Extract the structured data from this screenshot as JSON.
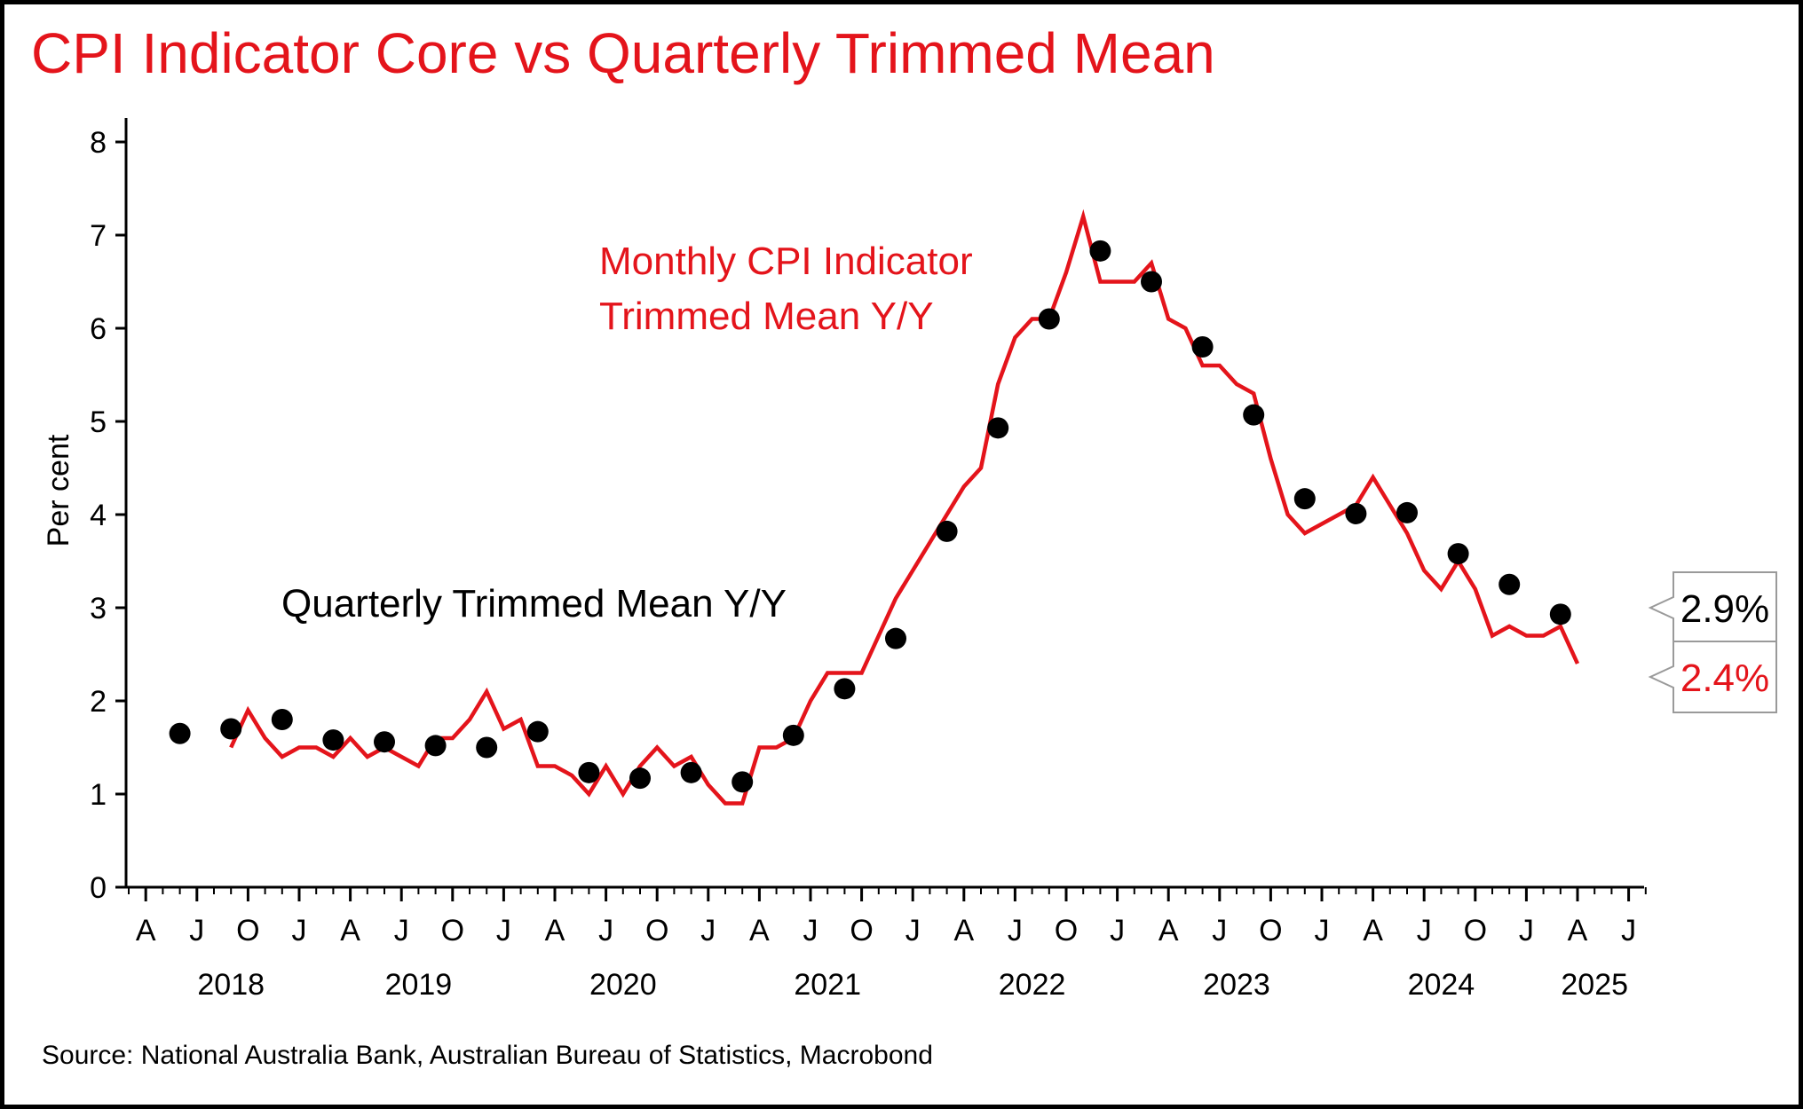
{
  "title": "CPI Indicator Core vs Quarterly Trimmed Mean",
  "source": "Source: National Australia Bank, Australian Bureau of Statistics, Macrobond",
  "colors": {
    "accent": "#e4141b",
    "dots": "#000000",
    "axis": "#000000"
  },
  "chart_data": {
    "type": "line",
    "title": "CPI Indicator Core vs Quarterly Trimmed Mean",
    "xlabel": "",
    "ylabel": "Per cent",
    "ylim": [
      0,
      8
    ],
    "yticks": [
      0,
      1,
      2,
      3,
      4,
      5,
      6,
      7,
      8
    ],
    "xlim": [
      "2018-03",
      "2025-08"
    ],
    "x_month_ticks": [
      "A",
      "J",
      "O",
      "J",
      "A",
      "J",
      "O",
      "J",
      "A",
      "J",
      "O",
      "J",
      "A",
      "J",
      "O",
      "J",
      "A",
      "J",
      "O",
      "J",
      "A",
      "J",
      "O",
      "J",
      "A",
      "J",
      "O",
      "J",
      "A",
      "J"
    ],
    "x_year_labels": [
      {
        "label": "2018",
        "at": "2018-09"
      },
      {
        "label": "2019",
        "at": "2019-08"
      },
      {
        "label": "2020",
        "at": "2020-08"
      },
      {
        "label": "2021",
        "at": "2021-08"
      },
      {
        "label": "2022",
        "at": "2022-08"
      },
      {
        "label": "2023",
        "at": "2023-08"
      },
      {
        "label": "2024",
        "at": "2024-08"
      },
      {
        "label": "2025",
        "at": "2025-05"
      }
    ],
    "grid": false,
    "legend": "none",
    "series": [
      {
        "name": "Monthly CPI Indicator Trimmed Mean Y/Y",
        "kind": "line",
        "color": "#e4141b",
        "points": [
          [
            "2018-09",
            1.5
          ],
          [
            "2018-10",
            1.9
          ],
          [
            "2018-11",
            1.6
          ],
          [
            "2018-12",
            1.4
          ],
          [
            "2019-01",
            1.5
          ],
          [
            "2019-02",
            1.5
          ],
          [
            "2019-03",
            1.4
          ],
          [
            "2019-04",
            1.6
          ],
          [
            "2019-05",
            1.4
          ],
          [
            "2019-06",
            1.5
          ],
          [
            "2019-07",
            1.4
          ],
          [
            "2019-08",
            1.3
          ],
          [
            "2019-09",
            1.6
          ],
          [
            "2019-10",
            1.6
          ],
          [
            "2019-11",
            1.8
          ],
          [
            "2019-12",
            2.1
          ],
          [
            "2020-01",
            1.7
          ],
          [
            "2020-02",
            1.8
          ],
          [
            "2020-03",
            1.3
          ],
          [
            "2020-04",
            1.3
          ],
          [
            "2020-05",
            1.2
          ],
          [
            "2020-06",
            1.0
          ],
          [
            "2020-07",
            1.3
          ],
          [
            "2020-08",
            1.0
          ],
          [
            "2020-09",
            1.3
          ],
          [
            "2020-10",
            1.5
          ],
          [
            "2020-11",
            1.3
          ],
          [
            "2020-12",
            1.4
          ],
          [
            "2021-01",
            1.1
          ],
          [
            "2021-02",
            0.9
          ],
          [
            "2021-03",
            0.9
          ],
          [
            "2021-04",
            1.5
          ],
          [
            "2021-05",
            1.5
          ],
          [
            "2021-06",
            1.6
          ],
          [
            "2021-07",
            2.0
          ],
          [
            "2021-08",
            2.3
          ],
          [
            "2021-09",
            2.3
          ],
          [
            "2021-10",
            2.3
          ],
          [
            "2021-11",
            2.7
          ],
          [
            "2021-12",
            3.1
          ],
          [
            "2022-01",
            3.4
          ],
          [
            "2022-02",
            3.7
          ],
          [
            "2022-03",
            4.0
          ],
          [
            "2022-04",
            4.3
          ],
          [
            "2022-05",
            4.5
          ],
          [
            "2022-06",
            5.4
          ],
          [
            "2022-07",
            5.9
          ],
          [
            "2022-08",
            6.1
          ],
          [
            "2022-09",
            6.1
          ],
          [
            "2022-10",
            6.6
          ],
          [
            "2022-11",
            7.2
          ],
          [
            "2022-12",
            6.5
          ],
          [
            "2023-01",
            6.5
          ],
          [
            "2023-02",
            6.5
          ],
          [
            "2023-03",
            6.7
          ],
          [
            "2023-04",
            6.1
          ],
          [
            "2023-05",
            6.0
          ],
          [
            "2023-06",
            5.6
          ],
          [
            "2023-07",
            5.6
          ],
          [
            "2023-08",
            5.4
          ],
          [
            "2023-09",
            5.3
          ],
          [
            "2023-10",
            4.6
          ],
          [
            "2023-11",
            4.0
          ],
          [
            "2023-12",
            3.8
          ],
          [
            "2024-01",
            3.9
          ],
          [
            "2024-02",
            4.0
          ],
          [
            "2024-03",
            4.1
          ],
          [
            "2024-04",
            4.4
          ],
          [
            "2024-05",
            4.1
          ],
          [
            "2024-06",
            3.8
          ],
          [
            "2024-07",
            3.4
          ],
          [
            "2024-08",
            3.2
          ],
          [
            "2024-09",
            3.5
          ],
          [
            "2024-10",
            3.2
          ],
          [
            "2024-11",
            2.7
          ],
          [
            "2024-12",
            2.8
          ],
          [
            "2025-01",
            2.7
          ],
          [
            "2025-02",
            2.7
          ],
          [
            "2025-03",
            2.8
          ],
          [
            "2025-04",
            2.4
          ]
        ]
      },
      {
        "name": "Quarterly Trimmed Mean Y/Y",
        "kind": "scatter",
        "color": "#000000",
        "points": [
          [
            "2018-06",
            1.65
          ],
          [
            "2018-09",
            1.7
          ],
          [
            "2018-12",
            1.8
          ],
          [
            "2019-03",
            1.58
          ],
          [
            "2019-06",
            1.56
          ],
          [
            "2019-09",
            1.52
          ],
          [
            "2019-12",
            1.5
          ],
          [
            "2020-03",
            1.67
          ],
          [
            "2020-06",
            1.23
          ],
          [
            "2020-09",
            1.17
          ],
          [
            "2020-12",
            1.23
          ],
          [
            "2021-03",
            1.13
          ],
          [
            "2021-06",
            1.63
          ],
          [
            "2021-09",
            2.13
          ],
          [
            "2021-12",
            2.67
          ],
          [
            "2022-03",
            3.82
          ],
          [
            "2022-06",
            4.93
          ],
          [
            "2022-09",
            6.1
          ],
          [
            "2022-12",
            6.83
          ],
          [
            "2023-03",
            6.5
          ],
          [
            "2023-06",
            5.8
          ],
          [
            "2023-09",
            5.07
          ],
          [
            "2023-12",
            4.17
          ],
          [
            "2024-03",
            4.01
          ],
          [
            "2024-06",
            4.02
          ],
          [
            "2024-09",
            3.58
          ],
          [
            "2024-12",
            3.25
          ],
          [
            "2025-03",
            2.93
          ]
        ]
      }
    ],
    "annotations": [
      {
        "text_lines": [
          "Monthly CPI Indicator",
          "Trimmed Mean Y/Y"
        ],
        "color": "#e4141b",
        "near": "2022-01"
      },
      {
        "text_lines": [
          "Quarterly Trimmed Mean Y/Y"
        ],
        "color": "#000000",
        "near": "2019-09"
      }
    ],
    "end_labels": [
      {
        "text": "2.9%",
        "color": "#000000",
        "value": 2.9
      },
      {
        "text": "2.4%",
        "color": "#e4141b",
        "value": 2.4
      }
    ]
  }
}
